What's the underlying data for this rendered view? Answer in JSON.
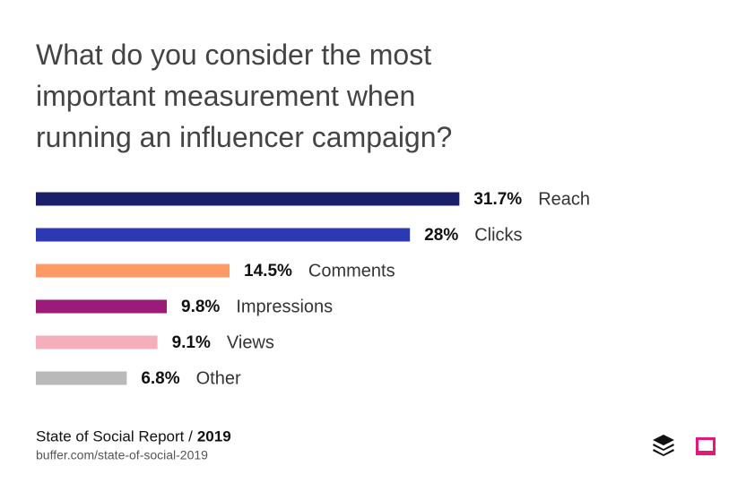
{
  "chart_data": {
    "type": "bar",
    "orientation": "horizontal",
    "title": "What do you consider the most important measurement when running an influencer campaign?",
    "categories": [
      "Reach",
      "Clicks",
      "Comments",
      "Impressions",
      "Views",
      "Other"
    ],
    "values": [
      31.7,
      28,
      14.5,
      9.8,
      9.1,
      6.8
    ],
    "value_labels": [
      "31.7%",
      "28%",
      "14.5%",
      "9.8%",
      "9.1%",
      "6.8%"
    ],
    "colors": [
      "#1b1f6a",
      "#2b3ab3",
      "#ff9a66",
      "#9a1b78",
      "#f5aebb",
      "#b9b9b9"
    ],
    "source": "State of Social Report /",
    "year": "2019",
    "url": "buffer.com/state-of-social-2019"
  }
}
